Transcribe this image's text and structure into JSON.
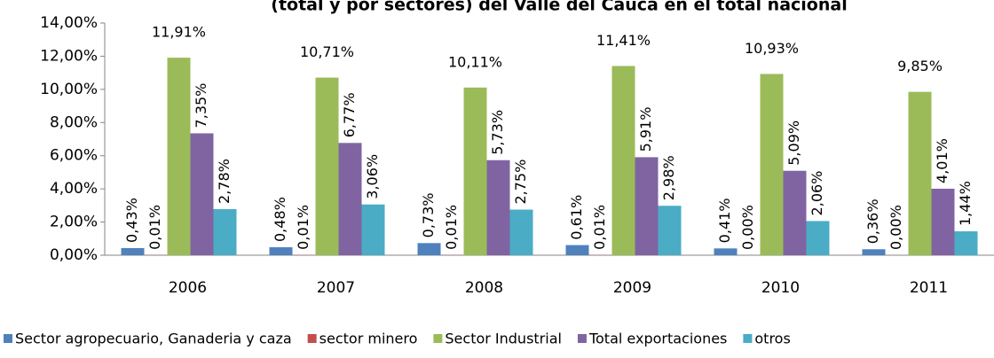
{
  "chart_data": {
    "type": "bar",
    "title": "(total y por sectores) del Valle del Cauca en el total nacional",
    "categories": [
      "2006",
      "2007",
      "2008",
      "2009",
      "2010",
      "2011"
    ],
    "series": [
      {
        "name": "Sector agropecuario, Ganaderia y caza",
        "color": "#4f81bd",
        "values": [
          0.43,
          0.48,
          0.73,
          0.61,
          0.41,
          0.36
        ],
        "value_labels": [
          "0,43%",
          "0,48%",
          "0,73%",
          "0,61%",
          "0,41%",
          "0,36%"
        ]
      },
      {
        "name": "sector minero",
        "color": "#c0504d",
        "values": [
          0.01,
          0.01,
          0.01,
          0.01,
          0.0,
          0.0
        ],
        "value_labels": [
          "0,01%",
          "0,01%",
          "0,01%",
          "0,01%",
          "0,00%",
          "0,00%"
        ]
      },
      {
        "name": "Sector Industrial",
        "color": "#9bbb59",
        "values": [
          11.91,
          10.71,
          10.11,
          11.41,
          10.93,
          9.85
        ],
        "value_labels": [
          "11,91%",
          "10,71%",
          "10,11%",
          "11,41%",
          "10,93%",
          "9,85%"
        ]
      },
      {
        "name": "Total exportaciones",
        "color": "#8064a2",
        "values": [
          7.35,
          6.77,
          5.73,
          5.91,
          5.09,
          4.01
        ],
        "value_labels": [
          "7,35%",
          "6,77%",
          "5,73%",
          "5,91%",
          "5,09%",
          "4,01%"
        ]
      },
      {
        "name": "otros",
        "color": "#4bacc6",
        "values": [
          2.78,
          3.06,
          2.75,
          2.98,
          2.06,
          1.44
        ],
        "value_labels": [
          "2,78%",
          "3,06%",
          "2,75%",
          "2,98%",
          "2,06%",
          "1,44%"
        ]
      }
    ],
    "ylim": [
      0,
      14
    ],
    "yticks": [
      {
        "value": 0,
        "label": "0,00%"
      },
      {
        "value": 2,
        "label": "2,00%"
      },
      {
        "value": 4,
        "label": "4,00%"
      },
      {
        "value": 6,
        "label": "6,00%"
      },
      {
        "value": 8,
        "label": "8,00%"
      },
      {
        "value": 10,
        "label": "10,00%"
      },
      {
        "value": 12,
        "label": "12,00%"
      },
      {
        "value": 14,
        "label": "14,00%"
      }
    ],
    "legend": "bottom"
  }
}
